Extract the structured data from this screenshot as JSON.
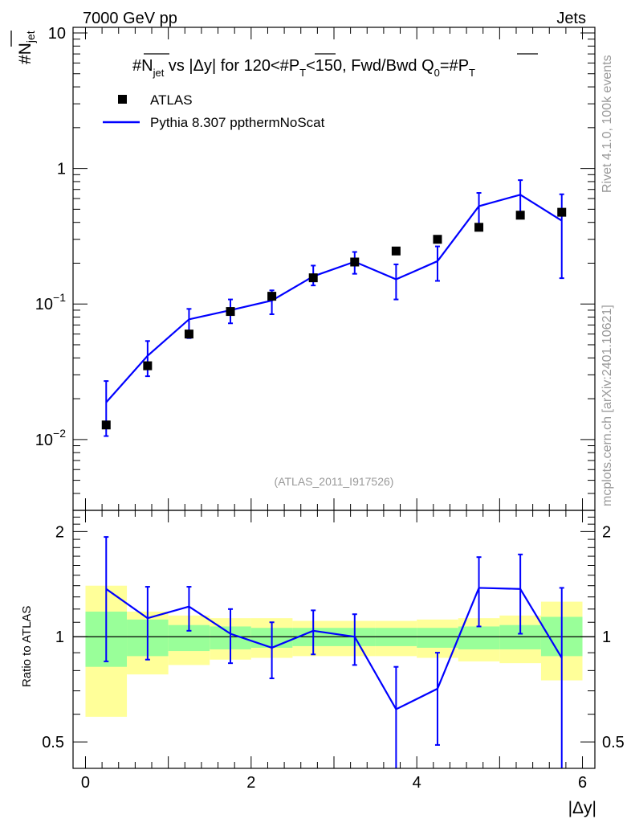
{
  "header": {
    "left": "7000 GeV pp",
    "right": "Jets"
  },
  "side_labels": {
    "rivet": "Rivet 4.1.0,  100k events",
    "mcplots": "mcplots.cern.ch [arXiv:2401.10621]"
  },
  "chart_data": {
    "type": "scatter",
    "title": "#N_jet vs |Δy| for 120<#P_T<150, Fwd/Bwd Q_0=#P_T",
    "title_parts": {
      "p1": "#N",
      "p1_sub": "jet",
      "p2": " vs |Δy| for 120<#",
      "p2_over": "P",
      "p3_sub": "T",
      "p4": "<150, Fwd/Bwd Q",
      "p4_sub": "0",
      "p5": "=#",
      "p5_over": "P",
      "p5_sub": "T"
    },
    "ylabel": {
      "main": "#N",
      "sub": "jet"
    },
    "xlabel": "|Δy|",
    "ratio_ylabel": "Ratio to ATLAS",
    "watermark": "(ATLAS_2011_I917526)",
    "legend": [
      {
        "label": "ATLAS",
        "marker": "square"
      },
      {
        "label": "Pythia 8.307 ppthermNoScat",
        "marker": "line",
        "color": "#0000ff"
      }
    ],
    "xlim": [
      -0.15,
      6.15
    ],
    "ylim": [
      0.003,
      11
    ],
    "ratio_ylim": [
      0.42,
      2.3
    ],
    "x_ticks": [
      0,
      2,
      4,
      6
    ],
    "x_tick_labels": [
      "0",
      "2",
      "4",
      "6"
    ],
    "y_tick_labels": [
      {
        "value": 10,
        "base": "10",
        "exp": ""
      },
      {
        "value": 1,
        "base": "1",
        "exp": ""
      },
      {
        "value": 0.1,
        "base": "10",
        "exp": "−1"
      },
      {
        "value": 0.01,
        "base": "10",
        "exp": "−2"
      }
    ],
    "ratio_tick_labels": [
      {
        "value": 2,
        "label": "2"
      },
      {
        "value": 1,
        "label": "1"
      },
      {
        "value": 0.5,
        "label": "0.5"
      }
    ],
    "bins": [
      [
        0,
        0.5
      ],
      [
        0.5,
        1
      ],
      [
        1,
        1.5
      ],
      [
        1.5,
        2
      ],
      [
        2,
        2.5
      ],
      [
        2.5,
        3
      ],
      [
        3,
        3.5
      ],
      [
        3.5,
        4
      ],
      [
        4,
        4.5
      ],
      [
        4.5,
        5
      ],
      [
        5,
        5.5
      ],
      [
        5.5,
        6
      ]
    ],
    "x": [
      0.25,
      0.75,
      1.25,
      1.75,
      2.25,
      2.75,
      3.25,
      3.75,
      4.25,
      4.75,
      5.25,
      5.75
    ],
    "series": [
      {
        "name": "ATLAS",
        "values": [
          0.0128,
          0.035,
          0.06,
          0.088,
          0.114,
          0.156,
          0.204,
          0.246,
          0.3,
          0.368,
          0.452,
          0.475
        ]
      },
      {
        "name": "Pythia 8.307 ppthermNoScat",
        "color": "#0000ff",
        "values": [
          0.0188,
          0.0415,
          0.077,
          0.09,
          0.106,
          0.16,
          0.205,
          0.152,
          0.207,
          0.527,
          0.64,
          0.412
        ],
        "err_low": [
          0.0082,
          0.0122,
          0.021,
          0.018,
          0.022,
          0.023,
          0.038,
          0.044,
          0.059,
          0.152,
          0.2,
          0.257
        ],
        "err_high": [
          0.0082,
          0.0118,
          0.015,
          0.018,
          0.02,
          0.032,
          0.037,
          0.044,
          0.059,
          0.133,
          0.18,
          0.233
        ]
      }
    ],
    "ratio": {
      "values": [
        1.37,
        1.13,
        1.22,
        1.02,
        0.93,
        1.04,
        1.0,
        0.62,
        0.71,
        1.38,
        1.37,
        0.87
      ],
      "err_low": [
        0.52,
        0.27,
        0.18,
        0.18,
        0.17,
        0.15,
        0.17,
        0.23,
        0.22,
        0.31,
        0.35,
        0.52
      ],
      "err_high": [
        0.56,
        0.26,
        0.17,
        0.18,
        0.17,
        0.15,
        0.16,
        0.2,
        0.19,
        0.31,
        0.35,
        0.51
      ],
      "band_yellow": [
        [
          0.59,
          1.4
        ],
        [
          0.78,
          1.18
        ],
        [
          0.83,
          1.15
        ],
        [
          0.86,
          1.13
        ],
        [
          0.87,
          1.13
        ],
        [
          0.88,
          1.11
        ],
        [
          0.88,
          1.11
        ],
        [
          0.88,
          1.11
        ],
        [
          0.87,
          1.12
        ],
        [
          0.85,
          1.13
        ],
        [
          0.84,
          1.15
        ],
        [
          0.75,
          1.26
        ]
      ],
      "band_green": [
        [
          0.82,
          1.18
        ],
        [
          0.88,
          1.12
        ],
        [
          0.91,
          1.08
        ],
        [
          0.92,
          1.07
        ],
        [
          0.93,
          1.06
        ],
        [
          0.94,
          1.06
        ],
        [
          0.94,
          1.06
        ],
        [
          0.94,
          1.06
        ],
        [
          0.93,
          1.06
        ],
        [
          0.92,
          1.07
        ],
        [
          0.92,
          1.08
        ],
        [
          0.88,
          1.14
        ]
      ]
    }
  }
}
